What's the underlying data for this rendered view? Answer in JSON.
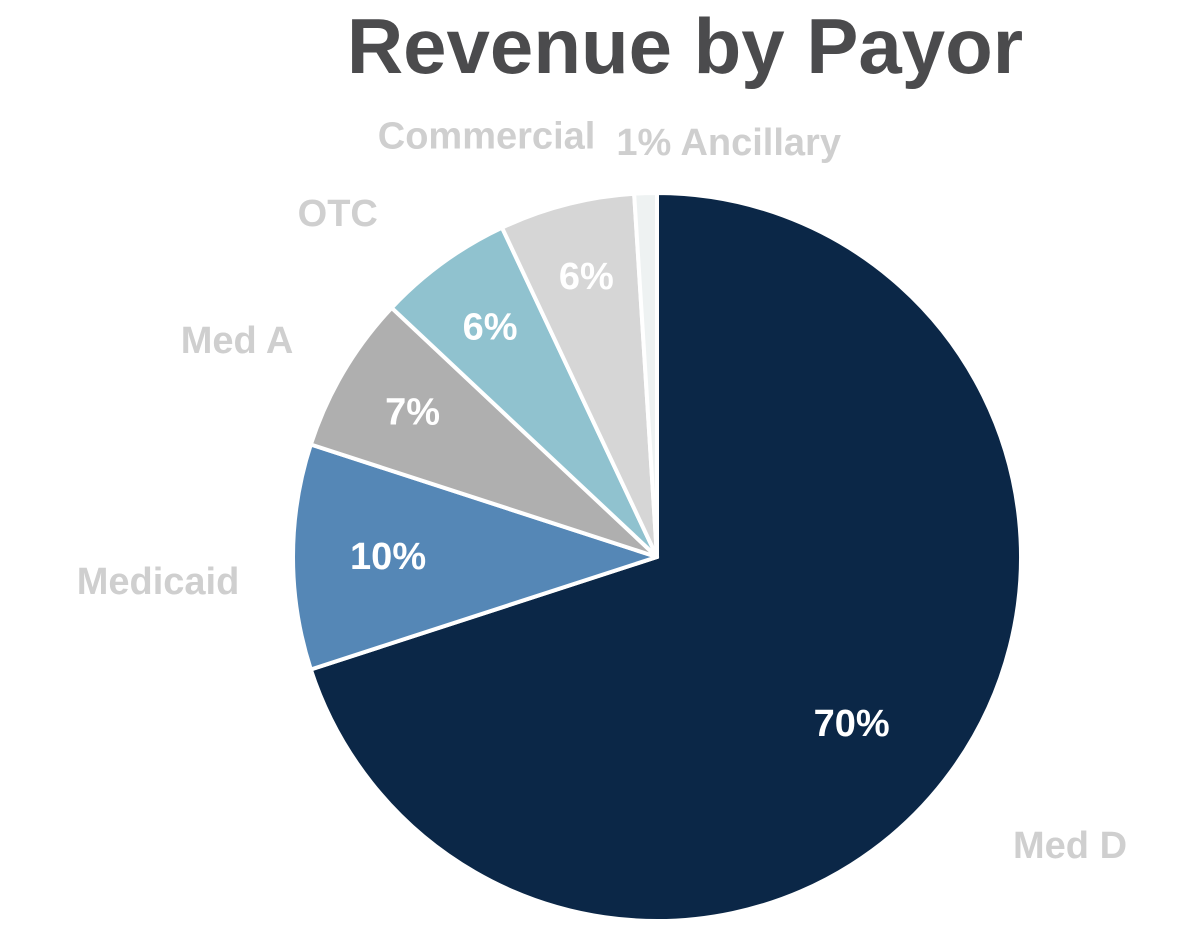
{
  "chart_data": {
    "type": "pie",
    "title": "Revenue by Payor",
    "start_angle_deg": 0,
    "direction": "clockwise",
    "categories": [
      "Med D",
      "Medicaid",
      "Med A",
      "OTC",
      "Commercial",
      "Ancillary"
    ],
    "values": [
      70,
      10,
      7,
      6,
      6,
      1
    ],
    "value_labels": [
      "70%",
      "10%",
      "7%",
      "6%",
      "6%",
      ""
    ],
    "category_labels": [
      "Med D",
      "Medicaid",
      "Med A",
      "OTC",
      "Commercial",
      "1% Ancillary"
    ],
    "colors": [
      "#0b2747",
      "#5587b6",
      "#afafaf",
      "#90c2cf",
      "#d6d6d6",
      "#eef2f2"
    ],
    "category_label_color": "#cfcfcf",
    "value_label_color": "#ffffff",
    "slice_border_color": "#ffffff",
    "legend": "none"
  }
}
